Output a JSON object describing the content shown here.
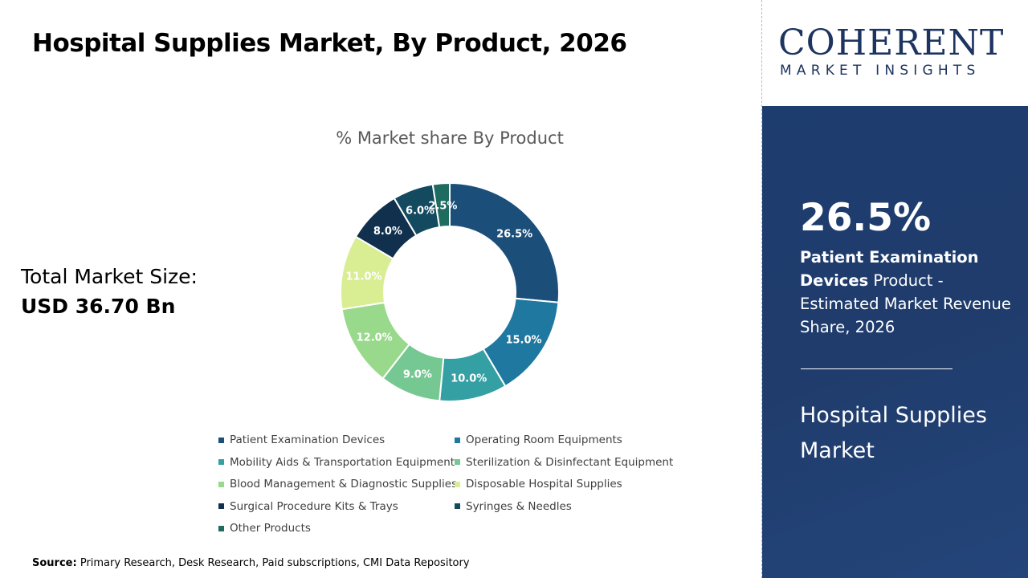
{
  "title": "Hospital Supplies Market, By Product, 2026",
  "total_market": {
    "label": "Total Market Size:",
    "value": "USD 36.70 Bn"
  },
  "source": {
    "label": "Source:",
    "text": "Primary Research, Desk Research, Paid subscriptions, CMI Data Repository"
  },
  "logo": {
    "name": "COHERENT",
    "tagline": "MARKET INSIGHTS"
  },
  "highlight": {
    "value": "26.5%",
    "segment": "Patient Examination Devices",
    "text": "Product - Estimated Market Revenue Share, 2026",
    "market": "Hospital Supplies Market"
  },
  "chart_data": {
    "type": "pie",
    "donut": true,
    "title": "% Market share By Product",
    "legend_position": "bottom",
    "unit": "%",
    "categories": [
      "Patient Examination Devices",
      "Operating Room Equipments",
      "Mobility Aids & Transportation Equipment",
      "Sterilization & Disinfectant Equipment",
      "Blood Management & Diagnostic Supplies",
      "Disposable Hospital Supplies",
      "Surgical Procedure Kits & Trays",
      "Syringes & Needles",
      "Other Products"
    ],
    "values": [
      26.5,
      15.0,
      10.0,
      9.0,
      12.0,
      11.0,
      8.0,
      6.0,
      2.5
    ],
    "labels": [
      "26.5%",
      "15.0%",
      "10.0%",
      "9.0%",
      "12.0%",
      "11.0%",
      "8.0%",
      "6.0%",
      "2.5%"
    ],
    "colors": [
      "#1b4f7a",
      "#1f78a0",
      "#34a0a4",
      "#76c893",
      "#99d98c",
      "#d9ed92",
      "#10304d",
      "#134a60",
      "#1e6b5f"
    ]
  }
}
